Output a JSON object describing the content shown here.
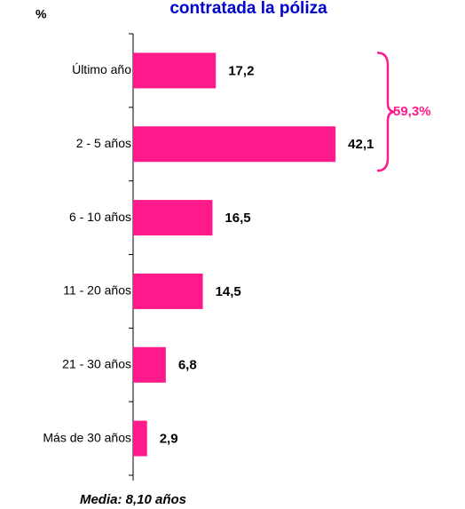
{
  "chart_data": {
    "type": "hbar",
    "title": "contratada la póliza",
    "y_label": "%",
    "categories": [
      "Último año",
      "2 - 5 años",
      "6 - 10 años",
      "11 - 20 años",
      "21 - 30 años",
      "Más de 30 años"
    ],
    "values": [
      17.2,
      42.1,
      16.5,
      14.5,
      6.8,
      2.9
    ],
    "value_labels": [
      "17,2",
      "42,1",
      "16,5",
      "14,5",
      "6,8",
      "2,9"
    ],
    "color": "#ff1a8c",
    "xlim": [
      0,
      50
    ],
    "annotation": "59,3%",
    "annotation_color": "#ff1a8c",
    "footnote": "Media: 8,10 años"
  }
}
